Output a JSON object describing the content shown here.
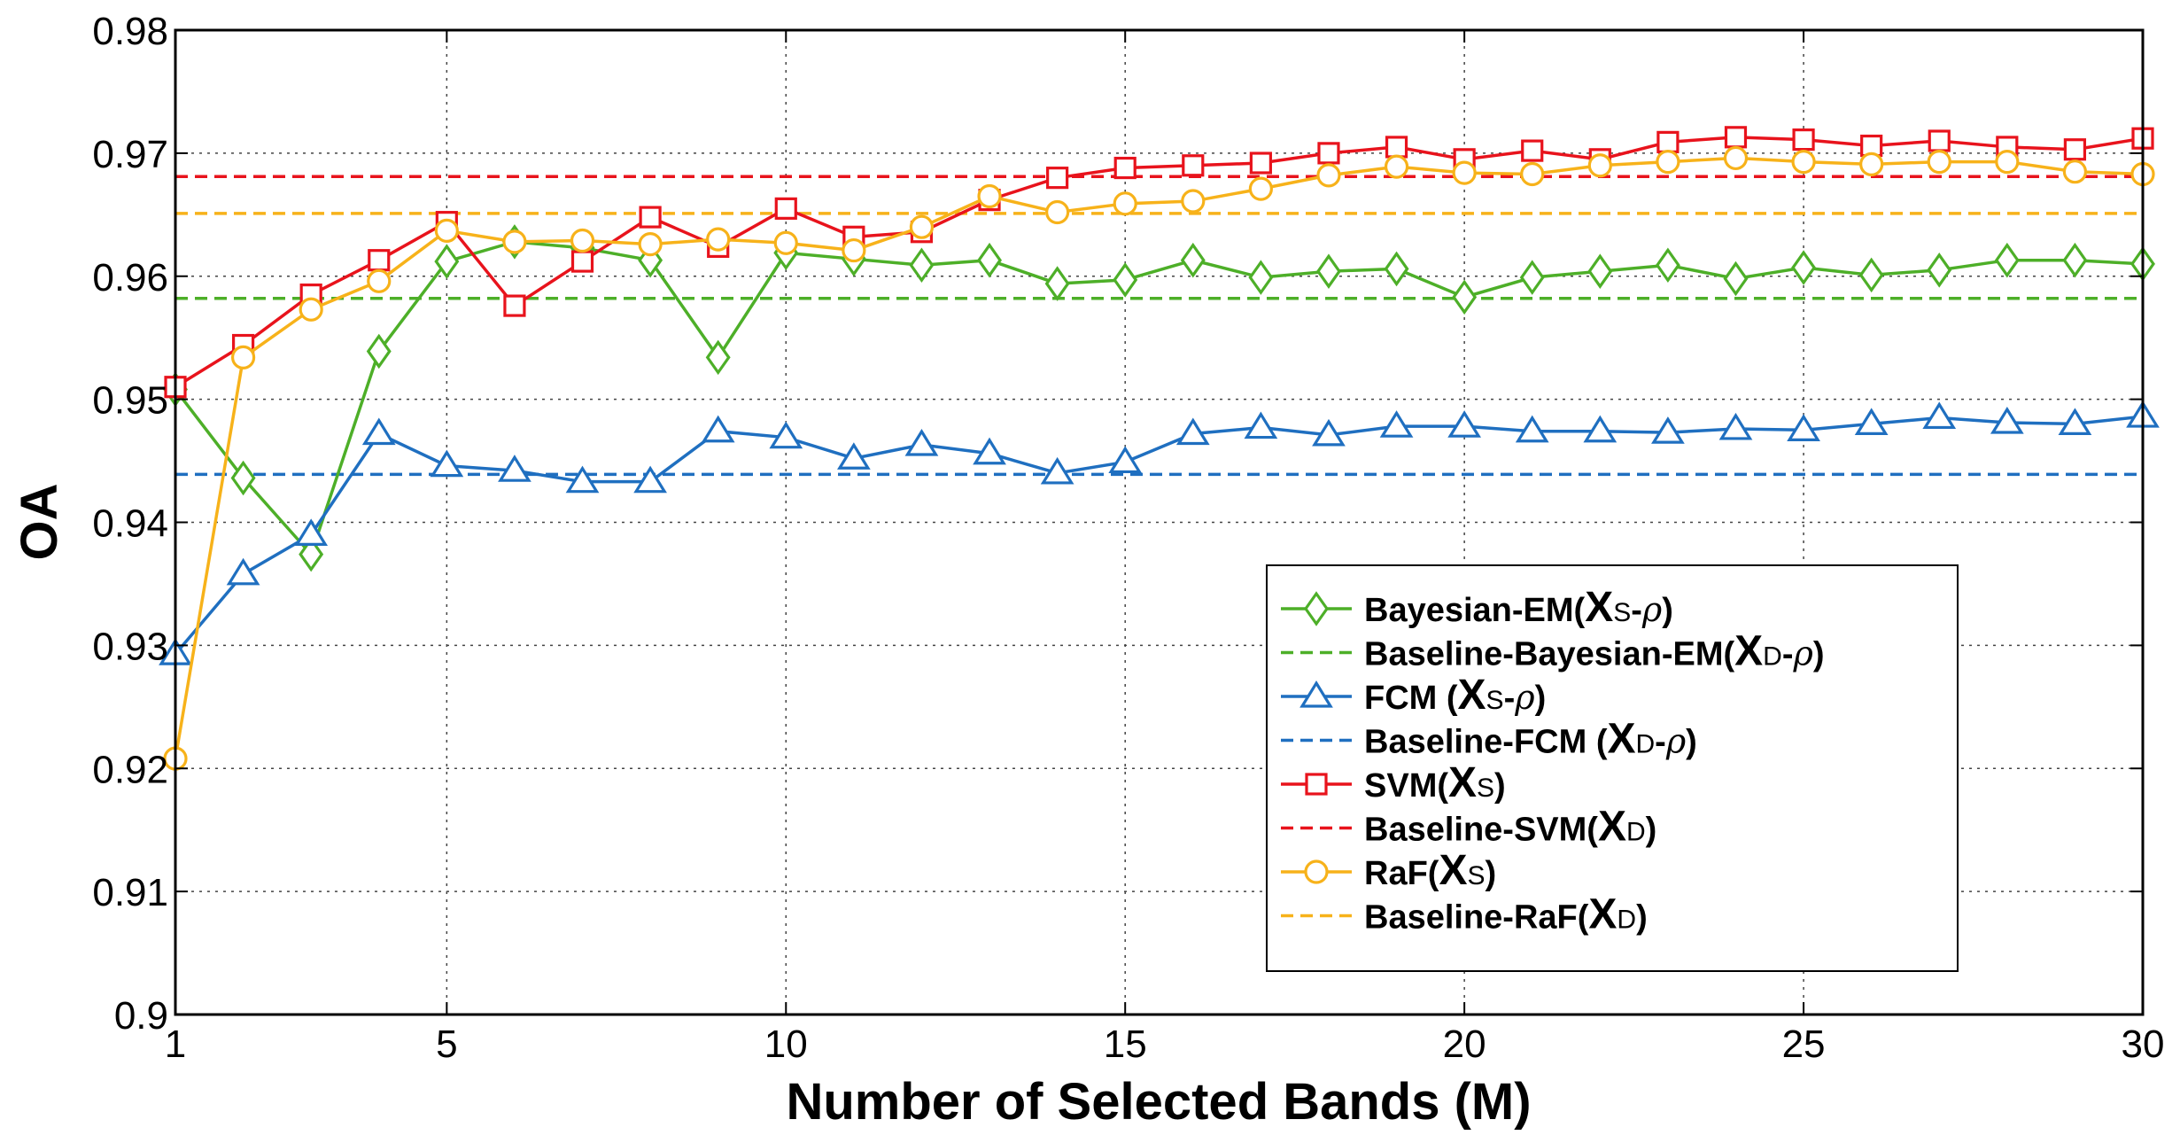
{
  "chart_data": {
    "type": "line",
    "title": "",
    "xlabel": "Number of Selected Bands (M)",
    "ylabel": "OA",
    "xlim": [
      1,
      30
    ],
    "ylim": [
      0.9,
      0.98
    ],
    "grid": true,
    "legend_position": "lower-right",
    "xticks": [
      1,
      5,
      10,
      15,
      20,
      25,
      30
    ],
    "xtick_labels": [
      "1",
      "5",
      "10",
      "15",
      "20",
      "25",
      "30"
    ],
    "yticks": [
      0.9,
      0.91,
      0.92,
      0.93,
      0.94,
      0.95,
      0.96,
      0.97,
      0.98
    ],
    "ytick_labels": [
      "0.9",
      "0.91",
      "0.92",
      "0.93",
      "0.94",
      "0.95",
      "0.96",
      "0.97",
      "0.98"
    ],
    "x": [
      1,
      2,
      3,
      4,
      5,
      6,
      7,
      8,
      9,
      10,
      11,
      12,
      13,
      14,
      15,
      16,
      17,
      18,
      19,
      20,
      21,
      22,
      23,
      24,
      25,
      26,
      27,
      28,
      29,
      30
    ],
    "series": [
      {
        "name": "Bayesian-EM",
        "legend_main": "Bayesian-EM(",
        "legend_sub": "S",
        "legend_suffix": "-",
        "legend_rho": "ρ",
        "legend_close": ")",
        "color": "#4daf28",
        "marker": "diamond",
        "style": "solid",
        "values": [
          0.9508,
          0.9436,
          0.9374,
          0.9539,
          0.9612,
          0.9628,
          0.9623,
          0.9613,
          0.9534,
          0.9619,
          0.9614,
          0.9609,
          0.9613,
          0.9594,
          0.9597,
          0.9613,
          0.9599,
          0.9604,
          0.9606,
          0.9583,
          0.9599,
          0.9604,
          0.9609,
          0.9598,
          0.9607,
          0.9601,
          0.9605,
          0.9613,
          0.9613,
          0.961
        ]
      },
      {
        "name": "Baseline-Bayesian-EM",
        "legend_main": "Baseline-Bayesian-EM(",
        "legend_sub": "D",
        "legend_suffix": "-",
        "legend_rho": "ρ",
        "legend_close": ")",
        "color": "#4daf28",
        "marker": "none",
        "style": "dashed",
        "values": [
          0.9582,
          0.9582,
          0.9582,
          0.9582,
          0.9582,
          0.9582,
          0.9582,
          0.9582,
          0.9582,
          0.9582,
          0.9582,
          0.9582,
          0.9582,
          0.9582,
          0.9582,
          0.9582,
          0.9582,
          0.9582,
          0.9582,
          0.9582,
          0.9582,
          0.9582,
          0.9582,
          0.9582,
          0.9582,
          0.9582,
          0.9582,
          0.9582,
          0.9582,
          0.9582
        ]
      },
      {
        "name": "FCM",
        "legend_main": "FCM (",
        "legend_sub": "S",
        "legend_suffix": "-",
        "legend_rho": "ρ",
        "legend_close": ")",
        "color": "#1f6fc0",
        "marker": "triangle",
        "style": "solid",
        "values": [
          0.9293,
          0.9358,
          0.939,
          0.9472,
          0.9446,
          0.9442,
          0.9433,
          0.9433,
          0.9474,
          0.9469,
          0.9452,
          0.9463,
          0.9456,
          0.944,
          0.9449,
          0.9472,
          0.9477,
          0.9471,
          0.9478,
          0.9478,
          0.9474,
          0.9474,
          0.9473,
          0.9476,
          0.9475,
          0.948,
          0.9485,
          0.9481,
          0.948,
          0.9486
        ]
      },
      {
        "name": "Baseline-FCM",
        "legend_main": "Baseline-FCM (",
        "legend_sub": "D",
        "legend_suffix": "-",
        "legend_rho": "ρ",
        "legend_close": ")",
        "color": "#1f6fc0",
        "marker": "none",
        "style": "dashed",
        "values": [
          0.9439,
          0.9439,
          0.9439,
          0.9439,
          0.9439,
          0.9439,
          0.9439,
          0.9439,
          0.9439,
          0.9439,
          0.9439,
          0.9439,
          0.9439,
          0.9439,
          0.9439,
          0.9439,
          0.9439,
          0.9439,
          0.9439,
          0.9439,
          0.9439,
          0.9439,
          0.9439,
          0.9439,
          0.9439,
          0.9439,
          0.9439,
          0.9439,
          0.9439,
          0.9439
        ]
      },
      {
        "name": "SVM",
        "legend_main": "SVM(",
        "legend_sub": "S",
        "legend_suffix": "",
        "legend_rho": "",
        "legend_close": ")",
        "color": "#e8131c",
        "marker": "square",
        "style": "solid",
        "values": [
          0.951,
          0.9544,
          0.9585,
          0.9613,
          0.9644,
          0.9576,
          0.9612,
          0.9648,
          0.9624,
          0.9655,
          0.9632,
          0.9636,
          0.9662,
          0.968,
          0.9688,
          0.969,
          0.9692,
          0.97,
          0.9705,
          0.9695,
          0.9702,
          0.9695,
          0.9709,
          0.9713,
          0.9711,
          0.9706,
          0.971,
          0.9705,
          0.9703,
          0.9712
        ]
      },
      {
        "name": "Baseline-SVM",
        "legend_main": "Baseline-SVM(",
        "legend_sub": "D",
        "legend_suffix": "",
        "legend_rho": "",
        "legend_close": ")",
        "color": "#e8131c",
        "marker": "none",
        "style": "dashed",
        "values": [
          0.9681,
          0.9681,
          0.9681,
          0.9681,
          0.9681,
          0.9681,
          0.9681,
          0.9681,
          0.9681,
          0.9681,
          0.9681,
          0.9681,
          0.9681,
          0.9681,
          0.9681,
          0.9681,
          0.9681,
          0.9681,
          0.9681,
          0.9681,
          0.9681,
          0.9681,
          0.9681,
          0.9681,
          0.9681,
          0.9681,
          0.9681,
          0.9681,
          0.9681,
          0.9681
        ]
      },
      {
        "name": "RaF",
        "legend_main": "RaF(",
        "legend_sub": "S",
        "legend_suffix": "",
        "legend_rho": "",
        "legend_close": ")",
        "color": "#f7b21a",
        "marker": "circle",
        "style": "solid",
        "values": [
          0.9208,
          0.9534,
          0.9573,
          0.9596,
          0.9637,
          0.9628,
          0.9629,
          0.9626,
          0.963,
          0.9627,
          0.9621,
          0.964,
          0.9665,
          0.9652,
          0.9659,
          0.9661,
          0.9671,
          0.9682,
          0.9689,
          0.9684,
          0.9683,
          0.969,
          0.9693,
          0.9696,
          0.9693,
          0.9691,
          0.9693,
          0.9693,
          0.9685,
          0.9683
        ]
      },
      {
        "name": "Baseline-RaF",
        "legend_main": "Baseline-RaF(",
        "legend_sub": "D",
        "legend_suffix": "",
        "legend_rho": "",
        "legend_close": ")",
        "color": "#f7b21a",
        "marker": "none",
        "style": "dashed",
        "values": [
          0.9651,
          0.9651,
          0.9651,
          0.9651,
          0.9651,
          0.9651,
          0.9651,
          0.9651,
          0.9651,
          0.9651,
          0.9651,
          0.9651,
          0.9651,
          0.9651,
          0.9651,
          0.9651,
          0.9651,
          0.9651,
          0.9651,
          0.9651,
          0.9651,
          0.9651,
          0.9651,
          0.9651,
          0.9651,
          0.9651,
          0.9651,
          0.9651,
          0.9651,
          0.9651
        ]
      }
    ],
    "legend_x_symbol": "X"
  }
}
